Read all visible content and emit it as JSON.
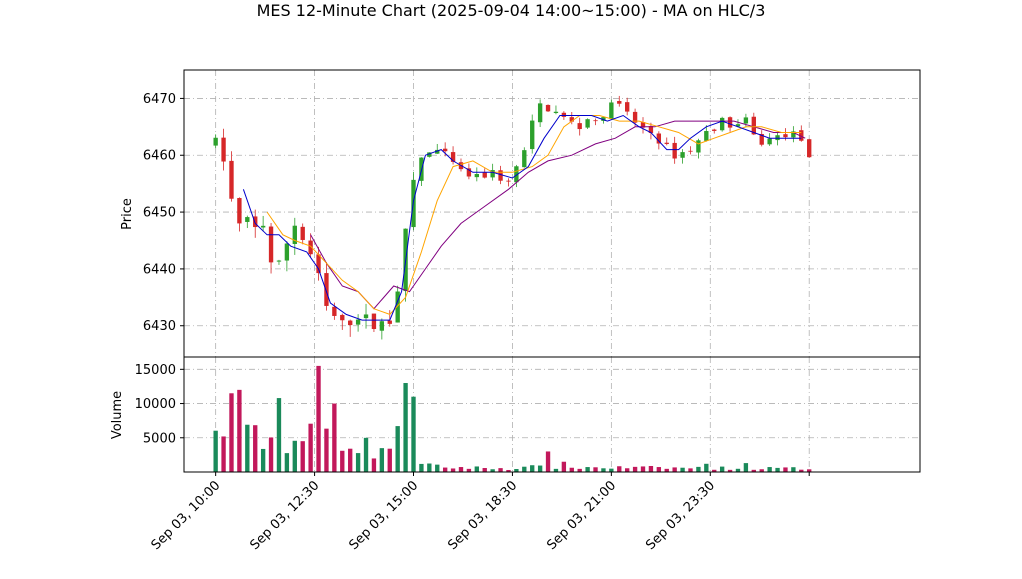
{
  "chart_data": {
    "type": "candlestick",
    "title": "MES 12-Minute Chart (2025-09-04 14:00~15:00) - MA on HLC/3",
    "ylabel_price": "Price",
    "ylabel_volume": "Volume",
    "grid": true,
    "price_ylim": [
      6424.5,
      6475.0
    ],
    "price_yticks": [
      6430,
      6440,
      6450,
      6460,
      6470
    ],
    "volume_ylim": [
      0,
      16800
    ],
    "volume_yticks": [
      5000,
      10000,
      15000
    ],
    "x_range_hours": [
      9.2,
      27.8
    ],
    "x_ticks": [
      {
        "h": 10.0,
        "label": "Sep 03, 10:00"
      },
      {
        "h": 12.5,
        "label": "Sep 03, 12:30"
      },
      {
        "h": 15.0,
        "label": "Sep 03, 15:00"
      },
      {
        "h": 17.5,
        "label": "Sep 03, 18:30"
      },
      {
        "h": 20.0,
        "label": "Sep 03, 21:00"
      },
      {
        "h": 22.5,
        "label": "Sep 03, 23:30"
      },
      {
        "h": 25.0,
        "label": ""
      }
    ],
    "colors": {
      "up": "#2ca02c",
      "down": "#d62728",
      "vol_up": "#1a8a5a",
      "vol_down": "#c2185b",
      "ma_fast": "#0000cc",
      "ma_mid": "#ffa500",
      "ma_slow": "#800080"
    },
    "price_path_keypoints": [
      [
        10.0,
        6462
      ],
      [
        10.3,
        6458
      ],
      [
        10.5,
        6446
      ],
      [
        10.7,
        6449
      ],
      [
        11.0,
        6447
      ],
      [
        11.2,
        6448
      ],
      [
        11.5,
        6438
      ],
      [
        11.7,
        6443
      ],
      [
        12.0,
        6448
      ],
      [
        12.3,
        6444
      ],
      [
        12.5,
        6441
      ],
      [
        12.8,
        6433
      ],
      [
        13.2,
        6430
      ],
      [
        13.6,
        6432
      ],
      [
        14.0,
        6430
      ],
      [
        14.4,
        6431
      ],
      [
        14.7,
        6440
      ],
      [
        14.9,
        6452
      ],
      [
        15.1,
        6459
      ],
      [
        15.5,
        6461
      ],
      [
        15.8,
        6460
      ],
      [
        16.2,
        6457
      ],
      [
        16.6,
        6456
      ],
      [
        17.0,
        6457
      ],
      [
        17.4,
        6455
      ],
      [
        17.6,
        6458
      ],
      [
        17.9,
        6462
      ],
      [
        18.1,
        6469
      ],
      [
        18.5,
        6468
      ],
      [
        18.9,
        6466
      ],
      [
        19.2,
        6465
      ],
      [
        19.5,
        6467
      ],
      [
        19.8,
        6466
      ],
      [
        20.0,
        6470
      ],
      [
        20.3,
        6468
      ],
      [
        20.7,
        6465
      ],
      [
        21.0,
        6464
      ],
      [
        21.3,
        6462
      ],
      [
        21.6,
        6460
      ],
      [
        22.0,
        6461
      ],
      [
        22.4,
        6464
      ],
      [
        22.8,
        6466
      ],
      [
        23.1,
        6465
      ],
      [
        23.4,
        6466
      ],
      [
        23.7,
        6462
      ],
      [
        24.1,
        6463
      ],
      [
        24.5,
        6464
      ],
      [
        24.8,
        6463
      ],
      [
        25.0,
        6459
      ]
    ],
    "volume_profile": [
      [
        10.0,
        5000
      ],
      [
        11.0,
        5000
      ],
      [
        12.0,
        4500
      ],
      [
        12.6,
        5500
      ],
      [
        13.2,
        5000
      ],
      [
        14.0,
        3200
      ],
      [
        14.5,
        4000
      ],
      [
        14.95,
        8000
      ],
      [
        15.05,
        2500
      ],
      [
        15.2,
        1000
      ],
      [
        15.8,
        700
      ],
      [
        17.5,
        500
      ],
      [
        18.0,
        700
      ],
      [
        25.0,
        500
      ]
    ],
    "volume_spikes": [
      [
        10.45,
        11500
      ],
      [
        10.55,
        12000
      ],
      [
        11.6,
        10800
      ],
      [
        12.65,
        15500
      ],
      [
        12.9,
        10000
      ],
      [
        14.85,
        13000
      ],
      [
        14.9,
        13800
      ],
      [
        14.95,
        11000
      ],
      [
        18.45,
        3000
      ],
      [
        18.8,
        1500
      ],
      [
        22.4,
        1200
      ],
      [
        23.3,
        1300
      ]
    ],
    "ma_fast_keypoints": [
      [
        10.7,
        6454
      ],
      [
        11.0,
        6448
      ],
      [
        11.3,
        6446
      ],
      [
        11.6,
        6446
      ],
      [
        11.9,
        6444
      ],
      [
        12.3,
        6443
      ],
      [
        12.6,
        6440
      ],
      [
        12.9,
        6434
      ],
      [
        13.3,
        6432
      ],
      [
        13.7,
        6431
      ],
      [
        14.0,
        6431
      ],
      [
        14.4,
        6431
      ],
      [
        14.7,
        6436
      ],
      [
        15.0,
        6452
      ],
      [
        15.3,
        6460
      ],
      [
        15.7,
        6461
      ],
      [
        16.0,
        6459
      ],
      [
        16.5,
        6457
      ],
      [
        17.0,
        6457
      ],
      [
        17.5,
        6456
      ],
      [
        17.9,
        6458
      ],
      [
        18.3,
        6463
      ],
      [
        18.7,
        6467
      ],
      [
        19.1,
        6467
      ],
      [
        19.5,
        6467
      ],
      [
        19.9,
        6466
      ],
      [
        20.3,
        6467
      ],
      [
        20.7,
        6465
      ],
      [
        21.0,
        6464
      ],
      [
        21.4,
        6461
      ],
      [
        21.7,
        6461
      ],
      [
        22.0,
        6463
      ],
      [
        22.4,
        6465
      ],
      [
        22.8,
        6466
      ],
      [
        23.2,
        6465
      ],
      [
        23.6,
        6464
      ],
      [
        24.0,
        6463
      ],
      [
        24.4,
        6463
      ],
      [
        24.8,
        6463
      ]
    ],
    "ma_mid_keypoints": [
      [
        11.3,
        6450
      ],
      [
        11.7,
        6446
      ],
      [
        12.0,
        6445
      ],
      [
        12.4,
        6444
      ],
      [
        12.8,
        6441
      ],
      [
        13.2,
        6438
      ],
      [
        13.6,
        6436
      ],
      [
        14.0,
        6433
      ],
      [
        14.4,
        6432
      ],
      [
        14.8,
        6435
      ],
      [
        15.2,
        6443
      ],
      [
        15.6,
        6452
      ],
      [
        16.0,
        6458
      ],
      [
        16.5,
        6459
      ],
      [
        17.0,
        6457
      ],
      [
        17.5,
        6457
      ],
      [
        18.0,
        6458
      ],
      [
        18.4,
        6460
      ],
      [
        18.8,
        6465
      ],
      [
        19.2,
        6467
      ],
      [
        19.7,
        6467
      ],
      [
        20.2,
        6466
      ],
      [
        20.7,
        6466
      ],
      [
        21.2,
        6465
      ],
      [
        21.7,
        6464
      ],
      [
        22.2,
        6462
      ],
      [
        22.6,
        6463
      ],
      [
        23.0,
        6464
      ],
      [
        23.4,
        6465
      ],
      [
        23.8,
        6465
      ],
      [
        24.3,
        6464
      ],
      [
        24.8,
        6464
      ]
    ],
    "ma_slow_keypoints": [
      [
        12.4,
        6446
      ],
      [
        12.8,
        6441
      ],
      [
        13.2,
        6437
      ],
      [
        13.6,
        6436
      ],
      [
        14.0,
        6433
      ],
      [
        14.5,
        6437
      ],
      [
        14.9,
        6436
      ],
      [
        15.3,
        6440
      ],
      [
        15.7,
        6444
      ],
      [
        16.2,
        6448
      ],
      [
        16.8,
        6451
      ],
      [
        17.4,
        6454
      ],
      [
        17.9,
        6457
      ],
      [
        18.4,
        6459
      ],
      [
        19.0,
        6460
      ],
      [
        19.6,
        6462
      ],
      [
        20.1,
        6463
      ],
      [
        20.6,
        6465
      ],
      [
        21.1,
        6465
      ],
      [
        21.6,
        6466
      ],
      [
        22.1,
        6466
      ],
      [
        22.6,
        6466
      ],
      [
        23.1,
        6466
      ],
      [
        23.6,
        6465
      ],
      [
        24.1,
        6464
      ],
      [
        24.6,
        6464
      ],
      [
        24.9,
        6463
      ]
    ]
  }
}
